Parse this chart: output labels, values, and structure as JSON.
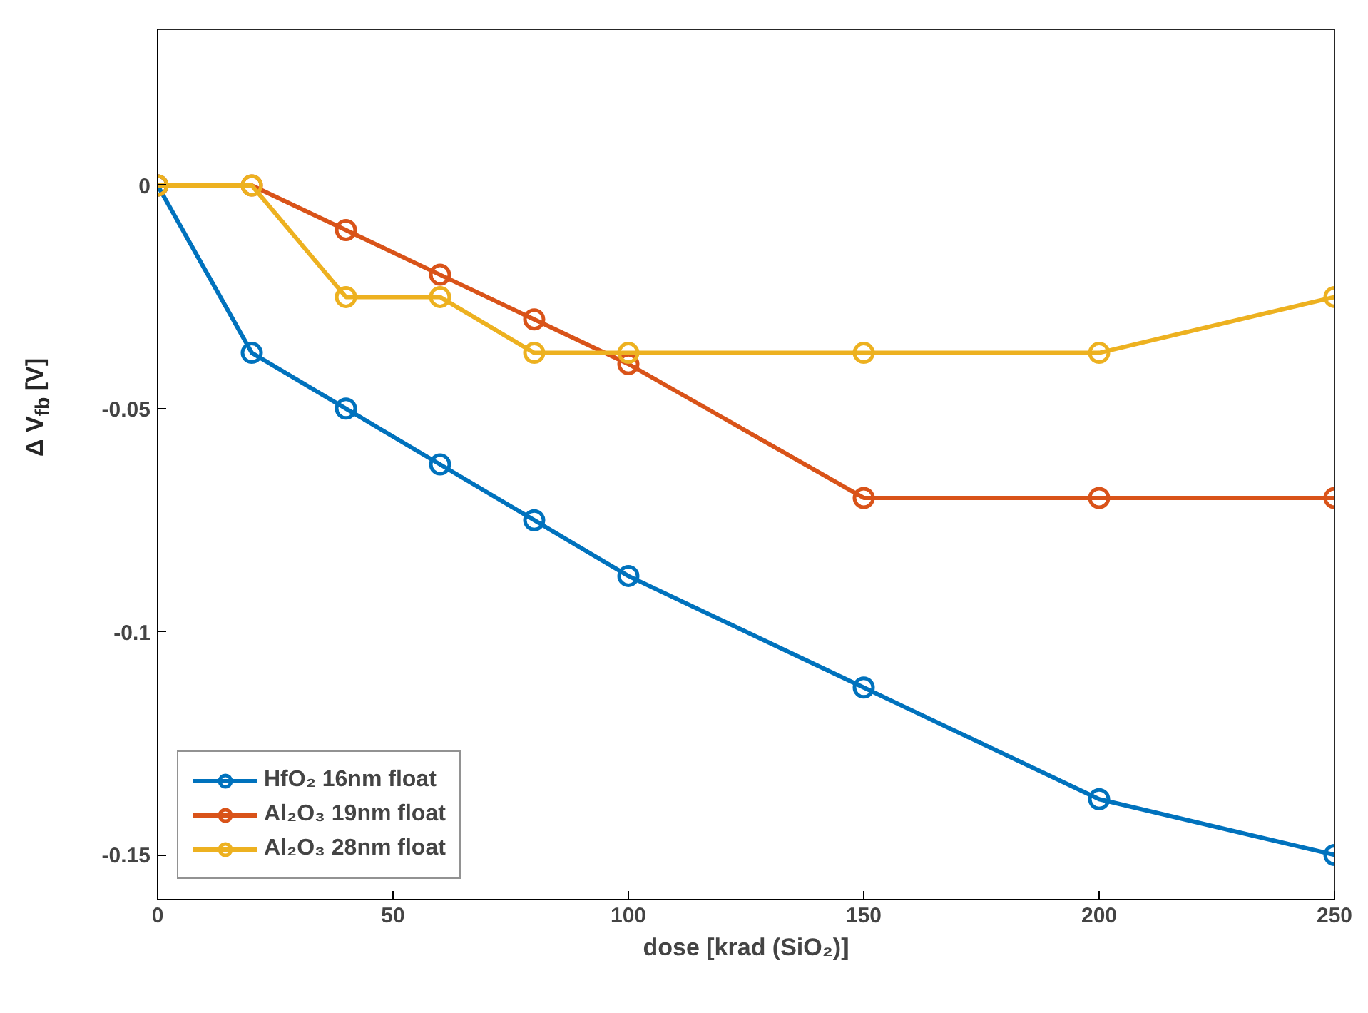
{
  "chart_data": {
    "type": "line",
    "xlabel": "dose [krad (SiO₂)]",
    "ylabel": "Δ V$_{fb}$ [V]",
    "x": [
      0,
      20,
      40,
      60,
      80,
      100,
      150,
      200,
      250
    ],
    "xlim": [
      0,
      250
    ],
    "xticks": [
      0,
      50,
      100,
      150,
      200,
      250
    ],
    "ylim": [
      -0.16,
      0.035
    ],
    "yticks": [
      {
        "value": 0,
        "label": "0"
      },
      {
        "value": -0.05,
        "label": "-0.05"
      },
      {
        "value": -0.1,
        "label": "-0.1"
      },
      {
        "value": -0.15,
        "label": "-0.15"
      }
    ],
    "series": [
      {
        "name": "HfO₂ 16nm float",
        "color": "#0072bd",
        "values": [
          0,
          -0.0375,
          -0.05,
          -0.0625,
          -0.075,
          -0.0875,
          -0.1125,
          -0.1375,
          -0.15
        ]
      },
      {
        "name": "Al₂O₃ 19nm float",
        "color": "#d95319",
        "values": [
          0,
          0,
          -0.01,
          -0.02,
          -0.03,
          -0.04,
          -0.07,
          -0.07,
          -0.07
        ]
      },
      {
        "name": "Al₂O₃ 28nm float",
        "color": "#edb120",
        "values": [
          0,
          0,
          -0.025,
          -0.025,
          -0.0375,
          -0.0375,
          -0.0375,
          -0.0375,
          -0.025
        ]
      }
    ],
    "marker": "circle",
    "grid": false,
    "legend": "bottom left"
  }
}
